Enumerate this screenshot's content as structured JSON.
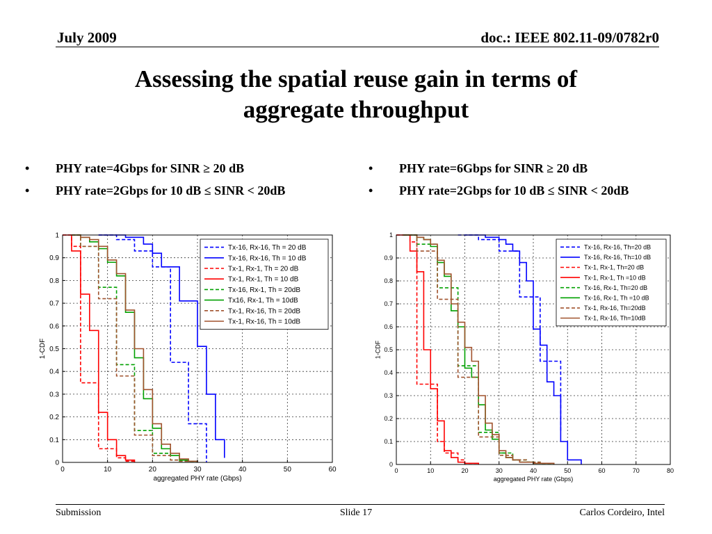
{
  "header": {
    "date": "July 2009",
    "doc": "doc.: IEEE 802.11-09/0782r0"
  },
  "title": {
    "line1": "Assessing the spatial reuse gain in terms of",
    "line2": "aggregate throughput"
  },
  "bullets_left": [
    "PHY rate=4Gbps for SINR ≥ 20 dB",
    "PHY rate=2Gbps for 10 dB ≤ SINR < 20dB"
  ],
  "bullets_right": [
    "PHY rate=6Gbps for SINR ≥ 20 dB",
    "PHY rate=2Gbps for 10 dB ≤ SINR < 20dB"
  ],
  "footer": {
    "left": "Submission",
    "center": "Slide 17",
    "right": "Carlos Cordeiro, Intel"
  },
  "chart_data": [
    {
      "type": "line",
      "step": true,
      "xlabel": "aggregated PHY rate (Gbps)",
      "ylabel": "1-CDF",
      "xlim": [
        0,
        60
      ],
      "ylim": [
        0,
        1
      ],
      "xticks": [
        0,
        10,
        20,
        30,
        40,
        50,
        60
      ],
      "yticks": [
        0,
        0.1,
        0.2,
        0.3,
        0.4,
        0.5,
        0.6,
        0.7,
        0.8,
        0.9,
        1
      ],
      "grid": true,
      "legend_position": "top-right",
      "series": [
        {
          "name": "Tx-16, Rx-16, Th = 20 dB",
          "color": "#0000ff",
          "dash": true,
          "x": [
            8,
            12,
            16,
            20,
            24,
            28,
            32
          ],
          "y": [
            1,
            0.98,
            0.93,
            0.86,
            0.44,
            0.17,
            0
          ]
        },
        {
          "name": "Tx-16, Rx-16, Th = 10 dB",
          "color": "#0000ff",
          "dash": false,
          "x": [
            8,
            14,
            18,
            20,
            22,
            26,
            30,
            32,
            34,
            36
          ],
          "y": [
            1,
            0.99,
            0.96,
            0.92,
            0.86,
            0.71,
            0.51,
            0.3,
            0.1,
            0.02
          ]
        },
        {
          "name": "Tx-1, Rx-1, Th = 20 dB",
          "color": "#ff0000",
          "dash": true,
          "x": [
            0,
            2,
            4,
            8,
            12,
            14,
            16
          ],
          "y": [
            1,
            0.95,
            0.35,
            0.06,
            0.02,
            0.005,
            0
          ]
        },
        {
          "name": "Tx-1, Rx-1, Th = 10 dB",
          "color": "#ff0000",
          "dash": false,
          "x": [
            0,
            2,
            4,
            6,
            8,
            10,
            12,
            14,
            16
          ],
          "y": [
            1,
            0.93,
            0.74,
            0.58,
            0.22,
            0.1,
            0.03,
            0.01,
            0
          ]
        },
        {
          "name": "Tx-16, Rx-1, Th = 20dB",
          "color": "#00a000",
          "dash": true,
          "x": [
            2,
            4,
            8,
            12,
            16,
            20,
            24,
            26,
            30
          ],
          "y": [
            1,
            0.95,
            0.77,
            0.43,
            0.14,
            0.04,
            0.01,
            0.005,
            0
          ]
        },
        {
          "name": "Tx16, Rx-1, Th = 10dB",
          "color": "#00a000",
          "dash": false,
          "x": [
            2,
            4,
            6,
            8,
            10,
            12,
            14,
            16,
            18,
            20,
            22,
            24,
            26,
            28,
            30
          ],
          "y": [
            1,
            0.99,
            0.97,
            0.94,
            0.88,
            0.82,
            0.66,
            0.46,
            0.28,
            0.15,
            0.06,
            0.03,
            0.01,
            0.005,
            0
          ]
        },
        {
          "name": "Tx-1, Rx-16, Th = 20dB",
          "color": "#a0522d",
          "dash": true,
          "x": [
            2,
            4,
            8,
            12,
            16,
            20,
            24,
            26,
            30
          ],
          "y": [
            1,
            0.95,
            0.72,
            0.38,
            0.12,
            0.03,
            0.01,
            0.005,
            0
          ]
        },
        {
          "name": "Tx-1, Rx-16, Th = 10dB",
          "color": "#a0522d",
          "dash": false,
          "x": [
            2,
            4,
            6,
            8,
            10,
            12,
            14,
            16,
            18,
            20,
            22,
            24,
            26,
            28,
            30
          ],
          "y": [
            1,
            0.99,
            0.98,
            0.95,
            0.89,
            0.83,
            0.67,
            0.5,
            0.32,
            0.17,
            0.08,
            0.04,
            0.015,
            0.005,
            0
          ]
        }
      ]
    },
    {
      "type": "line",
      "step": true,
      "xlabel": "aggregated PHY rate (Gbps)",
      "ylabel": "1-CDF",
      "xlim": [
        0,
        80
      ],
      "ylim": [
        0,
        1
      ],
      "xticks": [
        0,
        10,
        20,
        30,
        40,
        50,
        60,
        70,
        80
      ],
      "yticks": [
        0,
        0.1,
        0.2,
        0.3,
        0.4,
        0.5,
        0.6,
        0.7,
        0.8,
        0.9,
        1
      ],
      "grid": true,
      "legend_position": "top-right",
      "series": [
        {
          "name": "Tx-16, Rx-16, Th=20 dB",
          "color": "#0000ff",
          "dash": true,
          "x": [
            18,
            24,
            30,
            36,
            42,
            48
          ],
          "y": [
            1,
            0.98,
            0.93,
            0.73,
            0.45,
            0.14
          ]
        },
        {
          "name": "Tx-16, Rx-16, Th=10 dB",
          "color": "#0000ff",
          "dash": false,
          "x": [
            20,
            26,
            30,
            32,
            34,
            36,
            38,
            40,
            42,
            44,
            46,
            48,
            50,
            54
          ],
          "y": [
            1,
            0.99,
            0.98,
            0.96,
            0.93,
            0.88,
            0.8,
            0.59,
            0.52,
            0.36,
            0.3,
            0.1,
            0.02,
            0
          ]
        },
        {
          "name": "Tx-1, Rx-1, Th=20 dB",
          "color": "#ff0000",
          "dash": true,
          "x": [
            0,
            4,
            6,
            12,
            14,
            18,
            20,
            24
          ],
          "y": [
            1,
            0.97,
            0.35,
            0.1,
            0.05,
            0.02,
            0.005,
            0
          ]
        },
        {
          "name": "Tx-1, Rx-1, Th =10 dB",
          "color": "#ff0000",
          "dash": false,
          "x": [
            0,
            4,
            6,
            8,
            10,
            12,
            14,
            16,
            18,
            20,
            24
          ],
          "y": [
            1,
            0.93,
            0.84,
            0.5,
            0.33,
            0.19,
            0.06,
            0.03,
            0.01,
            0.005,
            0
          ]
        },
        {
          "name": "Tx-16, Rx-1, Th=20 dB",
          "color": "#00a000",
          "dash": true,
          "x": [
            2,
            6,
            12,
            18,
            24,
            30,
            34,
            38,
            42,
            46
          ],
          "y": [
            1,
            0.96,
            0.77,
            0.43,
            0.14,
            0.05,
            0.02,
            0.01,
            0.005,
            0
          ]
        },
        {
          "name": "Tx-16, Rx-1, Th =10 dB",
          "color": "#00a000",
          "dash": false,
          "x": [
            2,
            6,
            8,
            10,
            12,
            14,
            16,
            18,
            20,
            22,
            24,
            26,
            28,
            30,
            32,
            34,
            36,
            40,
            46
          ],
          "y": [
            1,
            0.99,
            0.98,
            0.95,
            0.88,
            0.82,
            0.67,
            0.6,
            0.42,
            0.38,
            0.26,
            0.15,
            0.11,
            0.05,
            0.03,
            0.02,
            0.01,
            0.005,
            0
          ]
        },
        {
          "name": "Tx-1, Rx-16, Th=20dB",
          "color": "#a0522d",
          "dash": true,
          "x": [
            2,
            6,
            12,
            18,
            24,
            30,
            34,
            38,
            42,
            46
          ],
          "y": [
            1,
            0.93,
            0.72,
            0.38,
            0.12,
            0.04,
            0.02,
            0.01,
            0.005,
            0
          ]
        },
        {
          "name": "Tx-1, Rx-16, Th=10dB",
          "color": "#a0522d",
          "dash": false,
          "x": [
            2,
            6,
            8,
            10,
            12,
            14,
            16,
            18,
            20,
            22,
            24,
            26,
            28,
            30,
            32,
            34,
            36,
            40,
            46
          ],
          "y": [
            1,
            0.99,
            0.98,
            0.96,
            0.89,
            0.83,
            0.7,
            0.62,
            0.51,
            0.45,
            0.3,
            0.18,
            0.13,
            0.06,
            0.03,
            0.02,
            0.01,
            0.005,
            0
          ]
        }
      ]
    }
  ]
}
